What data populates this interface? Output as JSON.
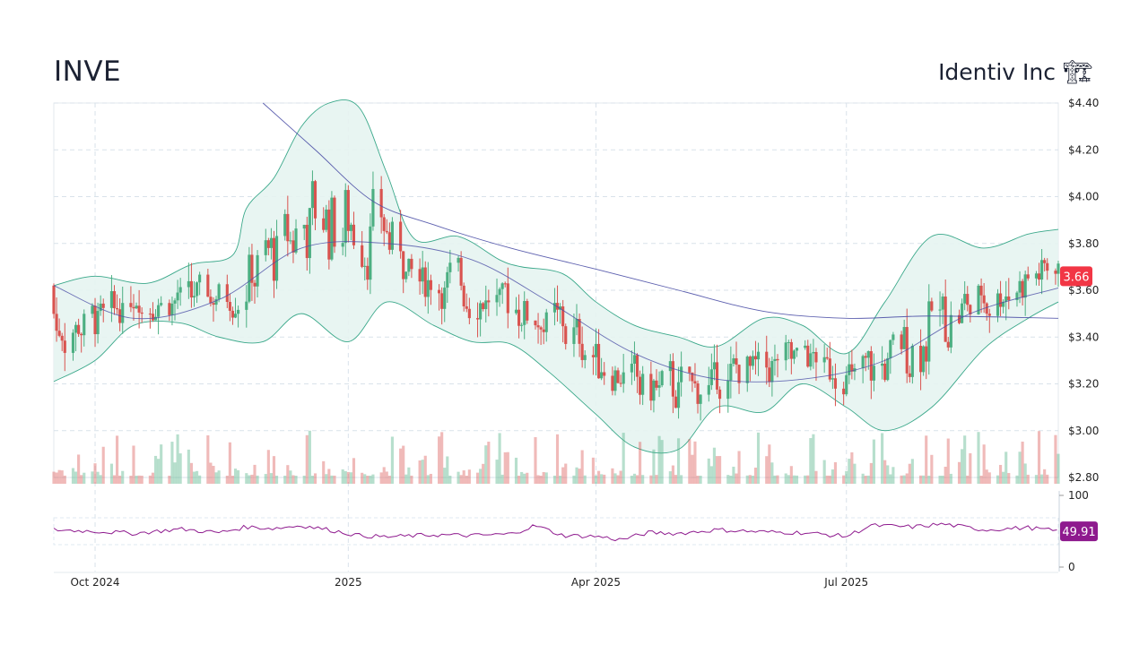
{
  "header": {
    "ticker": "INVE",
    "company": "Identiv Inc",
    "company_icon": "construction-crane-emoji"
  },
  "colors": {
    "up": "#4caf82",
    "down": "#d9534f",
    "band_fill": "#e6f4f1",
    "band_line": "#3aa88a",
    "ma_slow": "#4b4fa6",
    "rsi_line": "#8e1a8e",
    "last_price_badge": "#f23645",
    "rsi_badge": "#8e1a8e"
  },
  "chart_data": {
    "type": "candlestick",
    "y_axis": {
      "ticks": [
        "$4.40",
        "$4.20",
        "$4.00",
        "$3.80",
        "$3.60",
        "$3.40",
        "$3.20",
        "$3.00",
        "$2.80"
      ],
      "tick_values": [
        4.4,
        4.2,
        4.0,
        3.8,
        3.6,
        3.4,
        3.2,
        3.0,
        2.8
      ],
      "range": [
        2.8,
        4.4
      ]
    },
    "x_axis": {
      "labels": [
        "Oct 2024",
        "2025",
        "Apr 2025",
        "Jul 2025"
      ],
      "label_dates": [
        "2024-10-01",
        "2025-01-01",
        "2025-04-01",
        "2025-07-01"
      ],
      "range": [
        "2024-09-16",
        "2025-09-16"
      ]
    },
    "last_price": 3.66,
    "last_price_label": "3.66",
    "moving_averages": [
      {
        "points": [
          [
            "2024-09-16",
            3.62
          ],
          [
            "2024-10-15",
            3.48
          ],
          [
            "2024-11-15",
            3.56
          ],
          [
            "2024-12-15",
            3.78
          ],
          [
            "2025-01-15",
            3.8
          ],
          [
            "2025-02-15",
            3.73
          ],
          [
            "2025-03-15",
            3.55
          ],
          [
            "2025-04-15",
            3.33
          ],
          [
            "2025-05-15",
            3.22
          ],
          [
            "2025-06-15",
            3.22
          ],
          [
            "2025-07-15",
            3.3
          ],
          [
            "2025-08-15",
            3.5
          ],
          [
            "2025-09-16",
            3.61
          ]
        ]
      },
      {
        "points": [
          [
            "2024-12-01",
            4.4
          ],
          [
            "2024-12-20",
            4.2
          ],
          [
            "2025-01-10",
            3.98
          ],
          [
            "2025-02-01",
            3.88
          ],
          [
            "2025-03-01",
            3.78
          ],
          [
            "2025-04-01",
            3.69
          ],
          [
            "2025-05-01",
            3.6
          ],
          [
            "2025-06-01",
            3.51
          ],
          [
            "2025-07-01",
            3.48
          ],
          [
            "2025-08-01",
            3.49
          ],
          [
            "2025-09-16",
            3.48
          ]
        ]
      }
    ],
    "bollinger_upper": [
      [
        "2024-09-16",
        3.62
      ],
      [
        "2024-10-01",
        3.66
      ],
      [
        "2024-10-20",
        3.63
      ],
      [
        "2024-11-05",
        3.71
      ],
      [
        "2024-11-20",
        3.75
      ],
      [
        "2024-11-25",
        3.95
      ],
      [
        "2024-12-05",
        4.08
      ],
      [
        "2024-12-15",
        4.3
      ],
      [
        "2024-12-25",
        4.4
      ],
      [
        "2025-01-05",
        4.38
      ],
      [
        "2025-01-15",
        4.1
      ],
      [
        "2025-01-25",
        3.82
      ],
      [
        "2025-02-10",
        3.83
      ],
      [
        "2025-02-25",
        3.73
      ],
      [
        "2025-03-05",
        3.7
      ],
      [
        "2025-03-20",
        3.67
      ],
      [
        "2025-04-01",
        3.55
      ],
      [
        "2025-04-15",
        3.45
      ],
      [
        "2025-05-01",
        3.4
      ],
      [
        "2025-05-15",
        3.36
      ],
      [
        "2025-06-01",
        3.48
      ],
      [
        "2025-06-15",
        3.45
      ],
      [
        "2025-07-01",
        3.33
      ],
      [
        "2025-07-15",
        3.55
      ],
      [
        "2025-08-01",
        3.83
      ],
      [
        "2025-08-20",
        3.78
      ],
      [
        "2025-09-05",
        3.84
      ],
      [
        "2025-09-16",
        3.86
      ]
    ],
    "bollinger_lower": [
      [
        "2024-09-16",
        3.21
      ],
      [
        "2024-10-01",
        3.3
      ],
      [
        "2024-10-15",
        3.45
      ],
      [
        "2024-11-01",
        3.46
      ],
      [
        "2024-11-15",
        3.4
      ],
      [
        "2024-12-01",
        3.38
      ],
      [
        "2024-12-15",
        3.5
      ],
      [
        "2025-01-01",
        3.38
      ],
      [
        "2025-01-15",
        3.55
      ],
      [
        "2025-02-01",
        3.45
      ],
      [
        "2025-02-15",
        3.38
      ],
      [
        "2025-03-01",
        3.37
      ],
      [
        "2025-03-15",
        3.25
      ],
      [
        "2025-04-01",
        3.07
      ],
      [
        "2025-04-15",
        2.93
      ],
      [
        "2025-05-01",
        2.92
      ],
      [
        "2025-05-15",
        3.1
      ],
      [
        "2025-06-01",
        3.08
      ],
      [
        "2025-06-15",
        3.2
      ],
      [
        "2025-07-01",
        3.1
      ],
      [
        "2025-07-15",
        3.0
      ],
      [
        "2025-08-01",
        3.1
      ],
      [
        "2025-08-20",
        3.35
      ],
      [
        "2025-09-05",
        3.48
      ],
      [
        "2025-09-16",
        3.55
      ]
    ],
    "rsi": {
      "ticks": [
        "100",
        "0"
      ],
      "tick_values": [
        100,
        0
      ],
      "last_value_label": "49.91",
      "points": [
        [
          "2024-09-16",
          52
        ],
        [
          "2024-10-01",
          50
        ],
        [
          "2024-10-15",
          47
        ],
        [
          "2024-11-01",
          53
        ],
        [
          "2024-11-15",
          48
        ],
        [
          "2024-11-25",
          56
        ],
        [
          "2024-12-05",
          54
        ],
        [
          "2024-12-15",
          58
        ],
        [
          "2024-12-25",
          52
        ],
        [
          "2025-01-05",
          44
        ],
        [
          "2025-01-15",
          42
        ],
        [
          "2025-02-01",
          45
        ],
        [
          "2025-02-15",
          44
        ],
        [
          "2025-03-01",
          46
        ],
        [
          "2025-03-10",
          58
        ],
        [
          "2025-03-20",
          44
        ],
        [
          "2025-04-01",
          43
        ],
        [
          "2025-04-10",
          38
        ],
        [
          "2025-04-20",
          48
        ],
        [
          "2025-05-01",
          47
        ],
        [
          "2025-05-15",
          52
        ],
        [
          "2025-06-01",
          49
        ],
        [
          "2025-06-15",
          48
        ],
        [
          "2025-07-01",
          43
        ],
        [
          "2025-07-10",
          58
        ],
        [
          "2025-07-25",
          56
        ],
        [
          "2025-08-05",
          60
        ],
        [
          "2025-08-20",
          52
        ],
        [
          "2025-09-05",
          55
        ],
        [
          "2025-09-16",
          49.91
        ]
      ]
    }
  }
}
